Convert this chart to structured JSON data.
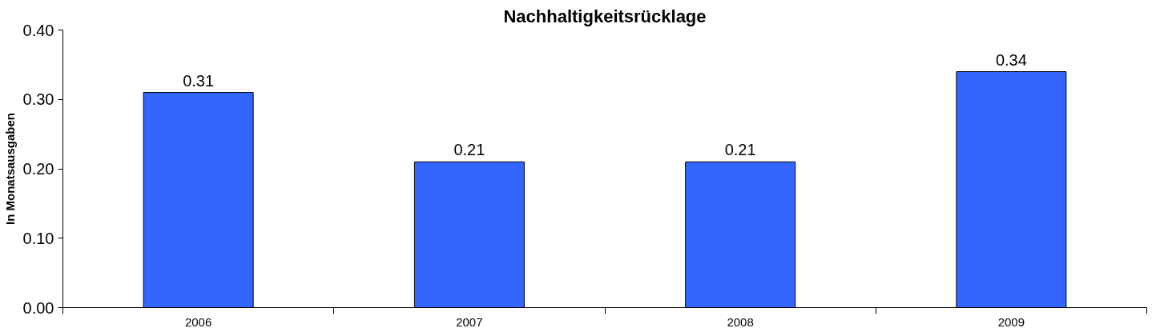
{
  "chart_data": {
    "type": "bar",
    "title": "Nachhaltigkeitsrücklage",
    "ylabel": "In Monatsausgaben",
    "categories": [
      "2006",
      "2007",
      "2008",
      "2009"
    ],
    "values": [
      0.31,
      0.21,
      0.21,
      0.34
    ],
    "color": "#3366ff",
    "ylim": [
      0,
      0.4
    ],
    "yticks": [
      {
        "value": 0,
        "label": "0.00"
      },
      {
        "value": 0.1,
        "label": "0.10"
      },
      {
        "value": 0.2,
        "label": "0.20"
      },
      {
        "value": 0.3,
        "label": "0.30"
      },
      {
        "value": 0.4,
        "label": "0.40"
      }
    ],
    "data_labels": true
  }
}
